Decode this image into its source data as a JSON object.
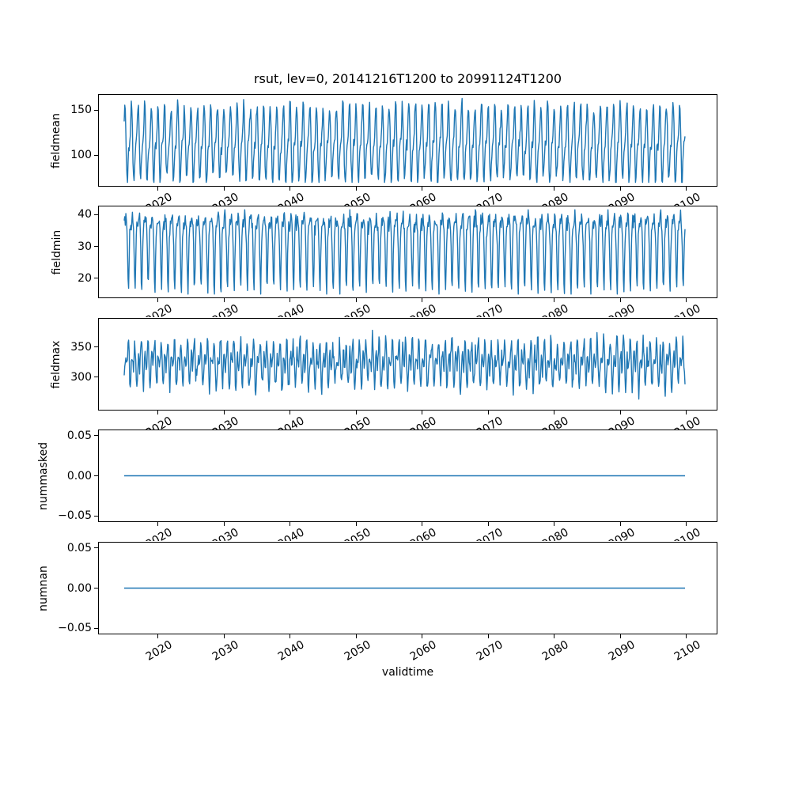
{
  "figure": {
    "title": "rsut, lev=0, 20141216T1200 to 20991124T1200",
    "xlabel": "validtime",
    "line_color": "#1f77b4",
    "frame_color": "#000000",
    "text_color": "#000000",
    "background_color": "#ffffff"
  },
  "chart_data": {
    "type": "line",
    "title": "rsut, lev=0, 20141216T1200 to 20991124T1200",
    "xlabel": "validtime",
    "legend": "none",
    "grid": false,
    "x_axis": {
      "start_year_fraction": 2014.9583,
      "end_year_fraction": 2099.875,
      "points_per_year": 12,
      "xlim": [
        2011.006,
        2104.785
      ],
      "tick_values": [
        2020,
        2030,
        2040,
        2050,
        2060,
        2070,
        2080,
        2090,
        2100
      ],
      "tick_labels": [
        "2020",
        "2030",
        "2040",
        "2050",
        "2060",
        "2070",
        "2080",
        "2090",
        "2100"
      ],
      "tick_rotation_deg": 30
    },
    "subplots": [
      {
        "ylabel": "fieldmean",
        "ylim": [
          65.3,
          167.7
        ],
        "ytick_values": [
          100,
          150
        ],
        "ytick_labels": [
          "100",
          "150"
        ],
        "data_min": 70,
        "data_max": 163,
        "model": {
          "kind": "harmonic",
          "base": 113,
          "noise_sd": 3.5,
          "amp_jitter": 0.1,
          "seed": 42,
          "harmonics": [
            {
              "amp": 34,
              "per_year": 1,
              "phase": 0.0
            },
            {
              "amp": 15,
              "per_year": 2,
              "phase": 0.12
            }
          ]
        }
      },
      {
        "ylabel": "fieldmin",
        "ylim": [
          13.7,
          42.8
        ],
        "ytick_values": [
          20,
          30,
          40
        ],
        "ytick_labels": [
          "20",
          "30",
          "40"
        ],
        "data_min": 15,
        "data_max": 41.5,
        "model": {
          "kind": "shape12",
          "noise_sd": 1.2,
          "seed": 7,
          "shape": [
            37,
            38.5,
            39.5,
            38,
            35,
            29,
            19.5,
            16.5,
            25,
            33,
            36,
            37.5
          ]
        }
      },
      {
        "ylabel": "fieldmax",
        "ylim": [
          245,
          398
        ],
        "ytick_values": [
          300,
          350
        ],
        "ytick_labels": [
          "300",
          "350"
        ],
        "data_min": 252,
        "data_max": 391,
        "model": {
          "kind": "harmonic",
          "base": 324,
          "noise_sd": 7,
          "amp_jitter": 0.12,
          "seed": 13,
          "harmonics": [
            {
              "amp": 21,
              "per_year": 1,
              "phase": 0.45
            },
            {
              "amp": 23,
              "per_year": 2,
              "phase": 0.1
            }
          ]
        }
      },
      {
        "ylabel": "nummasked",
        "ylim": [
          -0.0577,
          0.0577
        ],
        "ytick_values": [
          -0.05,
          0,
          0.05
        ],
        "ytick_labels": [
          "−0.05",
          "0.00",
          "0.05"
        ],
        "data_min": 0,
        "data_max": 0,
        "model": {
          "kind": "constant",
          "value": 0
        }
      },
      {
        "ylabel": "numnan",
        "ylim": [
          -0.0577,
          0.0577
        ],
        "ytick_values": [
          -0.05,
          0,
          0.05
        ],
        "ytick_labels": [
          "−0.05",
          "0.00",
          "0.05"
        ],
        "data_min": 0,
        "data_max": 0,
        "model": {
          "kind": "constant",
          "value": 0
        }
      }
    ]
  }
}
